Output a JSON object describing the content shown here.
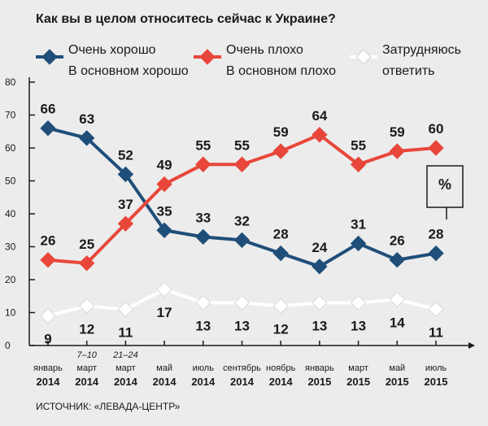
{
  "title": "Как вы в целом относитесь сейчас к Украине?",
  "source": "ИСТОЧНИК: «ЛЕВАДА-ЦЕНТР»",
  "unit_label": "%",
  "legend": [
    {
      "line1": "Очень хорошо",
      "line2": "В основном хорошо",
      "color": "#1f4e79"
    },
    {
      "line1": "Очень плохо",
      "line2": "В основном плохо",
      "color": "#e8463a"
    },
    {
      "line1": "Затрудняюсь",
      "line2": "ответить",
      "color": "#ffffff"
    }
  ],
  "chart_data": {
    "type": "line",
    "title": "Как вы в целом относитесь сейчас к Украине?",
    "ylim": [
      0,
      80
    ],
    "yticks": [
      0,
      10,
      20,
      30,
      40,
      50,
      60,
      70,
      80
    ],
    "grid": false,
    "legend_position": "top",
    "categories": [
      {
        "month": "январь",
        "year": "2014",
        "date": ""
      },
      {
        "month": "март",
        "year": "2014",
        "date": "7–10"
      },
      {
        "month": "март",
        "year": "2014",
        "date": "21–24"
      },
      {
        "month": "май",
        "year": "2014",
        "date": ""
      },
      {
        "month": "июль",
        "year": "2014",
        "date": ""
      },
      {
        "month": "сентябрь",
        "year": "2014",
        "date": ""
      },
      {
        "month": "ноябрь",
        "year": "2014",
        "date": ""
      },
      {
        "month": "январь",
        "year": "2015",
        "date": ""
      },
      {
        "month": "март",
        "year": "2015",
        "date": ""
      },
      {
        "month": "май",
        "year": "2015",
        "date": ""
      },
      {
        "month": "июль",
        "year": "2015",
        "date": ""
      }
    ],
    "series": [
      {
        "name": "Очень хорошо / В основном хорошо",
        "color": "#1f4e79",
        "values": [
          66,
          63,
          52,
          35,
          33,
          32,
          28,
          24,
          31,
          26,
          28
        ]
      },
      {
        "name": "Очень плохо / В основном плохо",
        "color": "#e8463a",
        "values": [
          26,
          25,
          37,
          49,
          55,
          55,
          59,
          64,
          55,
          59,
          60
        ]
      },
      {
        "name": "Затрудняюсь ответить",
        "color": "#ffffff",
        "values": [
          9,
          12,
          11,
          17,
          13,
          13,
          12,
          13,
          13,
          14,
          11
        ]
      }
    ]
  }
}
